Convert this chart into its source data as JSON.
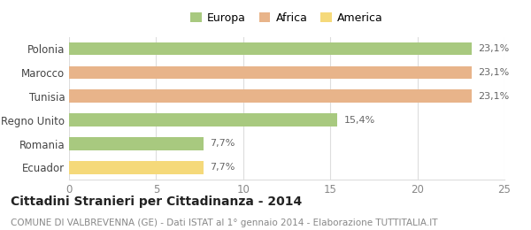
{
  "categories": [
    "Polonia",
    "Marocco",
    "Tunisia",
    "Regno Unito",
    "Romania",
    "Ecuador"
  ],
  "values": [
    23.1,
    23.1,
    23.1,
    15.4,
    7.7,
    7.7
  ],
  "labels": [
    "23,1%",
    "23,1%",
    "23,1%",
    "15,4%",
    "7,7%",
    "7,7%"
  ],
  "bar_colors": [
    "#a8c97f",
    "#e8b48a",
    "#e8b48a",
    "#a8c97f",
    "#a8c97f",
    "#f5d97a"
  ],
  "legend_items": [
    {
      "label": "Europa",
      "color": "#a8c97f"
    },
    {
      "label": "Africa",
      "color": "#e8b48a"
    },
    {
      "label": "America",
      "color": "#f5d97a"
    }
  ],
  "xlim": [
    0,
    25
  ],
  "xticks": [
    0,
    5,
    10,
    15,
    20,
    25
  ],
  "title": "Cittadini Stranieri per Cittadinanza - 2014",
  "subtitle": "COMUNE DI VALBREVENNA (GE) - Dati ISTAT al 1° gennaio 2014 - Elaborazione TUTTITALIA.IT",
  "title_fontsize": 10,
  "subtitle_fontsize": 7.5,
  "background_color": "#ffffff",
  "bar_height": 0.55,
  "grid_color": "#dddddd"
}
